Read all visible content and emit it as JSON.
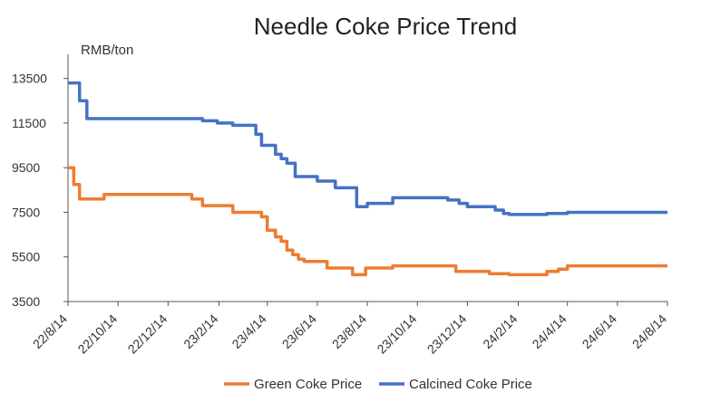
{
  "chart_data": {
    "type": "line",
    "title": "Needle Coke Price Trend",
    "unit_label": "RMB/ton",
    "xlabel": "",
    "ylabel": "",
    "ylim": [
      3500,
      14500
    ],
    "y_ticks": [
      3500,
      5500,
      7500,
      9500,
      11500,
      13500
    ],
    "x_range": [
      "2022-08-14",
      "2024-08-14"
    ],
    "x_ticks": [
      {
        "date": "2022-08-14",
        "label": "22/8/14"
      },
      {
        "date": "2022-10-14",
        "label": "22/10/14"
      },
      {
        "date": "2022-12-14",
        "label": "22/12/14"
      },
      {
        "date": "2023-02-14",
        "label": "23/2/14"
      },
      {
        "date": "2023-04-14",
        "label": "23/4/14"
      },
      {
        "date": "2023-06-14",
        "label": "23/6/14"
      },
      {
        "date": "2023-08-14",
        "label": "23/8/14"
      },
      {
        "date": "2023-10-14",
        "label": "23/10/14"
      },
      {
        "date": "2023-12-14",
        "label": "23/12/14"
      },
      {
        "date": "2024-02-14",
        "label": "24/2/14"
      },
      {
        "date": "2024-04-14",
        "label": "24/4/14"
      },
      {
        "date": "2024-06-14",
        "label": "24/6/14"
      },
      {
        "date": "2024-08-14",
        "label": "24/8/14"
      }
    ],
    "grid": false,
    "legend_position": "bottom",
    "series": [
      {
        "name": "Green Coke Price",
        "color": "#ED7D31",
        "points": [
          [
            "2022-08-14",
            9500
          ],
          [
            "2022-08-21",
            9500
          ],
          [
            "2022-08-21",
            8750
          ],
          [
            "2022-08-28",
            8750
          ],
          [
            "2022-08-28",
            8100
          ],
          [
            "2022-09-27",
            8100
          ],
          [
            "2022-09-27",
            8300
          ],
          [
            "2023-01-12",
            8300
          ],
          [
            "2023-01-12",
            8100
          ],
          [
            "2023-01-25",
            8100
          ],
          [
            "2023-01-25",
            7800
          ],
          [
            "2023-03-03",
            7800
          ],
          [
            "2023-03-03",
            7500
          ],
          [
            "2023-04-07",
            7500
          ],
          [
            "2023-04-07",
            7300
          ],
          [
            "2023-04-14",
            7300
          ],
          [
            "2023-04-14",
            6700
          ],
          [
            "2023-04-24",
            6700
          ],
          [
            "2023-04-24",
            6400
          ],
          [
            "2023-05-01",
            6400
          ],
          [
            "2023-05-01",
            6200
          ],
          [
            "2023-05-08",
            6200
          ],
          [
            "2023-05-08",
            5800
          ],
          [
            "2023-05-15",
            5800
          ],
          [
            "2023-05-15",
            5600
          ],
          [
            "2023-05-22",
            5600
          ],
          [
            "2023-05-22",
            5400
          ],
          [
            "2023-05-29",
            5400
          ],
          [
            "2023-05-29",
            5300
          ],
          [
            "2023-06-26",
            5300
          ],
          [
            "2023-06-26",
            5000
          ],
          [
            "2023-07-27",
            5000
          ],
          [
            "2023-07-27",
            4700
          ],
          [
            "2023-08-12",
            4700
          ],
          [
            "2023-08-12",
            5000
          ],
          [
            "2023-09-14",
            5000
          ],
          [
            "2023-09-14",
            5100
          ],
          [
            "2023-11-30",
            5100
          ],
          [
            "2023-11-30",
            4850
          ],
          [
            "2024-01-10",
            4850
          ],
          [
            "2024-01-10",
            4750
          ],
          [
            "2024-02-03",
            4750
          ],
          [
            "2024-02-03",
            4700
          ],
          [
            "2024-03-20",
            4700
          ],
          [
            "2024-03-20",
            4850
          ],
          [
            "2024-04-03",
            4850
          ],
          [
            "2024-04-03",
            4950
          ],
          [
            "2024-04-14",
            4950
          ],
          [
            "2024-04-14",
            5100
          ],
          [
            "2024-08-14",
            5100
          ]
        ]
      },
      {
        "name": "Calcined Coke Price",
        "color": "#4472C4",
        "points": [
          [
            "2022-08-14",
            13300
          ],
          [
            "2022-08-28",
            13300
          ],
          [
            "2022-08-28",
            12500
          ],
          [
            "2022-09-06",
            12500
          ],
          [
            "2022-09-06",
            11700
          ],
          [
            "2023-01-25",
            11700
          ],
          [
            "2023-01-25",
            11600
          ],
          [
            "2023-02-12",
            11600
          ],
          [
            "2023-02-12",
            11500
          ],
          [
            "2023-03-03",
            11500
          ],
          [
            "2023-03-03",
            11400
          ],
          [
            "2023-03-31",
            11400
          ],
          [
            "2023-03-31",
            11000
          ],
          [
            "2023-04-07",
            11000
          ],
          [
            "2023-04-07",
            10500
          ],
          [
            "2023-04-24",
            10500
          ],
          [
            "2023-04-24",
            10100
          ],
          [
            "2023-05-01",
            10100
          ],
          [
            "2023-05-01",
            9900
          ],
          [
            "2023-05-08",
            9900
          ],
          [
            "2023-05-08",
            9700
          ],
          [
            "2023-05-18",
            9700
          ],
          [
            "2023-05-18",
            9100
          ],
          [
            "2023-06-14",
            9100
          ],
          [
            "2023-06-14",
            8900
          ],
          [
            "2023-07-06",
            8900
          ],
          [
            "2023-07-06",
            8600
          ],
          [
            "2023-08-01",
            8600
          ],
          [
            "2023-08-01",
            7750
          ],
          [
            "2023-08-14",
            7750
          ],
          [
            "2023-08-14",
            7900
          ],
          [
            "2023-09-14",
            7900
          ],
          [
            "2023-09-14",
            8150
          ],
          [
            "2023-11-20",
            8150
          ],
          [
            "2023-11-20",
            8050
          ],
          [
            "2023-12-04",
            8050
          ],
          [
            "2023-12-04",
            7900
          ],
          [
            "2023-12-14",
            7900
          ],
          [
            "2023-12-14",
            7750
          ],
          [
            "2024-01-17",
            7750
          ],
          [
            "2024-01-17",
            7600
          ],
          [
            "2024-01-27",
            7600
          ],
          [
            "2024-01-27",
            7450
          ],
          [
            "2024-02-03",
            7450
          ],
          [
            "2024-02-03",
            7400
          ],
          [
            "2024-03-20",
            7400
          ],
          [
            "2024-03-20",
            7450
          ],
          [
            "2024-04-14",
            7450
          ],
          [
            "2024-04-14",
            7500
          ],
          [
            "2024-08-14",
            7500
          ]
        ]
      }
    ]
  }
}
